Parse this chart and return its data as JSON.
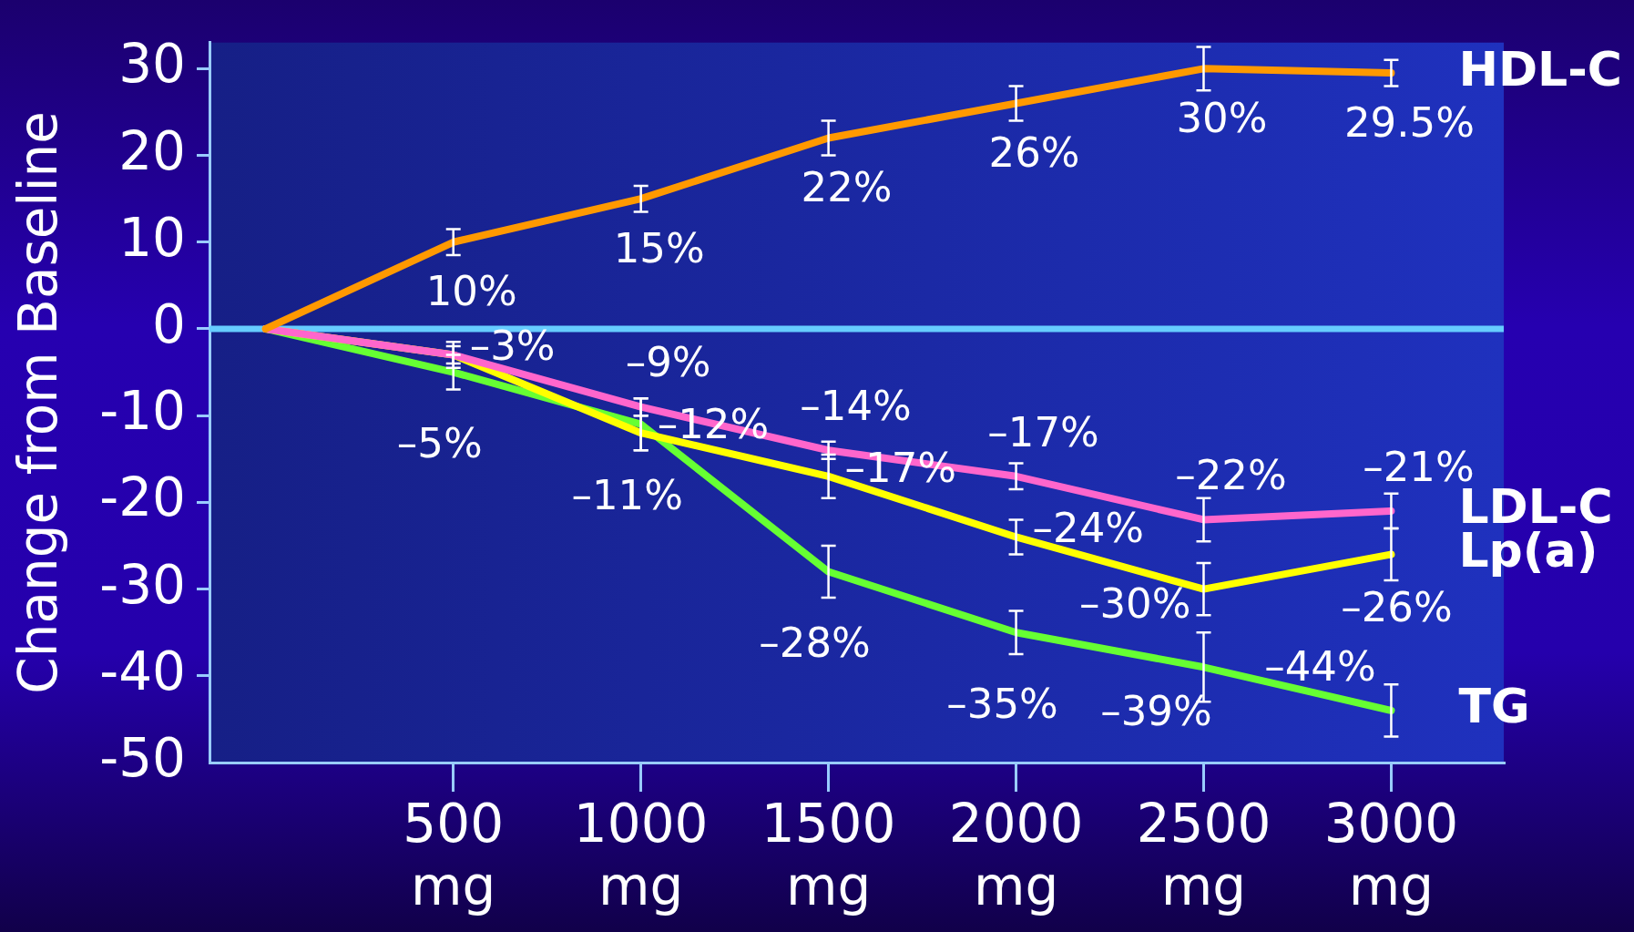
{
  "chart_data": {
    "type": "line",
    "ylabel": "Change from Baseline",
    "x": [
      0,
      500,
      1000,
      1500,
      2000,
      2500,
      3000
    ],
    "xlim": [
      -150,
      3300
    ],
    "xticks": [
      {
        "value": 500,
        "label": "500 mg"
      },
      {
        "value": 1000,
        "label": "1000 mg"
      },
      {
        "value": 1500,
        "label": "1500 mg"
      },
      {
        "value": 2000,
        "label": "2000 mg"
      },
      {
        "value": 2500,
        "label": "2500 mg"
      },
      {
        "value": 3000,
        "label": "3000 mg"
      }
    ],
    "ylim": [
      -50,
      33
    ],
    "yticks": [
      30,
      20,
      10,
      0,
      -10,
      -20,
      -30,
      -40,
      -50
    ],
    "ref_lines": [
      {
        "axis": "y",
        "value": 0,
        "color": "#66ccff"
      }
    ],
    "series": [
      {
        "name": "HDL-C",
        "color": "#ff9900",
        "values": [
          0,
          10,
          15,
          22,
          26,
          30,
          29.5
        ],
        "errors": [
          null,
          1.5,
          1.5,
          2,
          2,
          2.5,
          1.5
        ],
        "value_labels": [
          null,
          "10%",
          "15%",
          "22%",
          "26%",
          "30%",
          "29.5%"
        ]
      },
      {
        "name": "LDL-C",
        "color": "#ff66cc",
        "values": [
          0,
          -3,
          -9,
          -14,
          -17,
          -22,
          -21
        ],
        "errors": [
          null,
          1,
          1,
          1,
          1.5,
          2.5,
          2
        ],
        "value_labels": [
          null,
          null,
          "–9%",
          "–14%",
          "–17%",
          "–22%",
          "–21%"
        ]
      },
      {
        "name": "Lp(a)",
        "color": "#ffff00",
        "values": [
          0,
          -3,
          -12,
          -17,
          -24,
          -30,
          -26
        ],
        "errors": [
          null,
          1.5,
          2,
          2.5,
          2,
          3,
          3
        ],
        "value_labels": [
          null,
          "–3%",
          "–12%",
          "–17%",
          "–24%",
          "–30%",
          "–26%"
        ]
      },
      {
        "name": "TG",
        "color": "#66ff33",
        "values": [
          0,
          -5,
          -11,
          -28,
          -35,
          -39,
          -44
        ],
        "errors": [
          null,
          2,
          3,
          3,
          2.5,
          4,
          3
        ],
        "value_labels": [
          null,
          "–5%",
          "–11%",
          "–28%",
          "–35%",
          "–39%",
          "–44%"
        ]
      }
    ]
  }
}
